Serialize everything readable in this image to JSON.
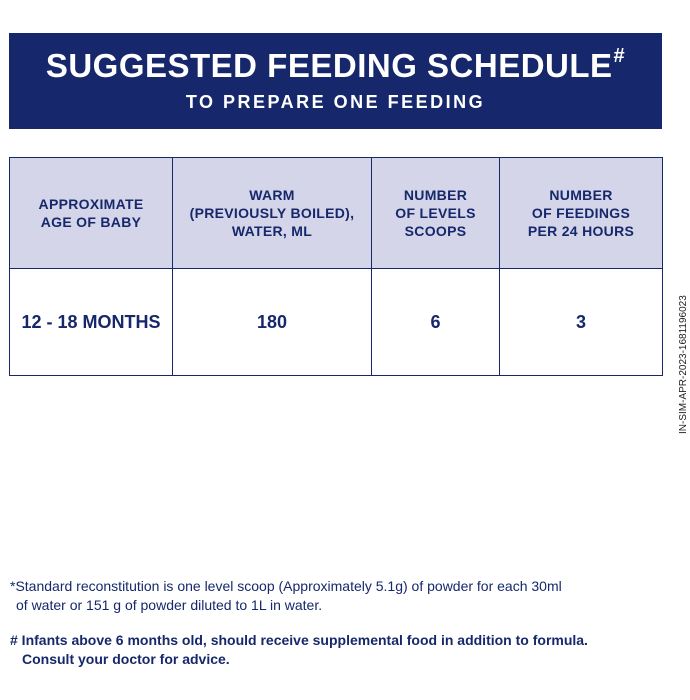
{
  "banner": {
    "title": "SUGGESTED FEEDING SCHEDULE",
    "title_mark": "#",
    "subtitle": "TO PREPARE ONE FEEDING"
  },
  "table": {
    "headers": [
      "APPROXIMATE\nAGE OF BABY",
      "WARM\n(PREVIOUSLY BOILED),\nWATER, ML",
      "NUMBER\nOF LEVELS\nSCOOPS",
      "NUMBER\nOF FEEDINGS\nPER 24 HOURS"
    ],
    "rows": [
      [
        "12 - 18 MONTHS",
        "180",
        "6",
        "3"
      ]
    ]
  },
  "notes": {
    "standard_line1": "*Standard reconstitution is one level scoop (Approximately 5.1g) of powder for each 30ml",
    "standard_line2": "of water or 151 g of powder diluted to 1L in water.",
    "infants_line1": "# Infants above 6 months old, should receive supplemental food in addition to formula.",
    "infants_line2": "Consult your doctor for advice."
  },
  "side_code": "IN-SIM-APR-2023-1681196023",
  "colors": {
    "navy": "#16286b",
    "header_fill": "#d4d5e8",
    "background": "#ffffff"
  }
}
